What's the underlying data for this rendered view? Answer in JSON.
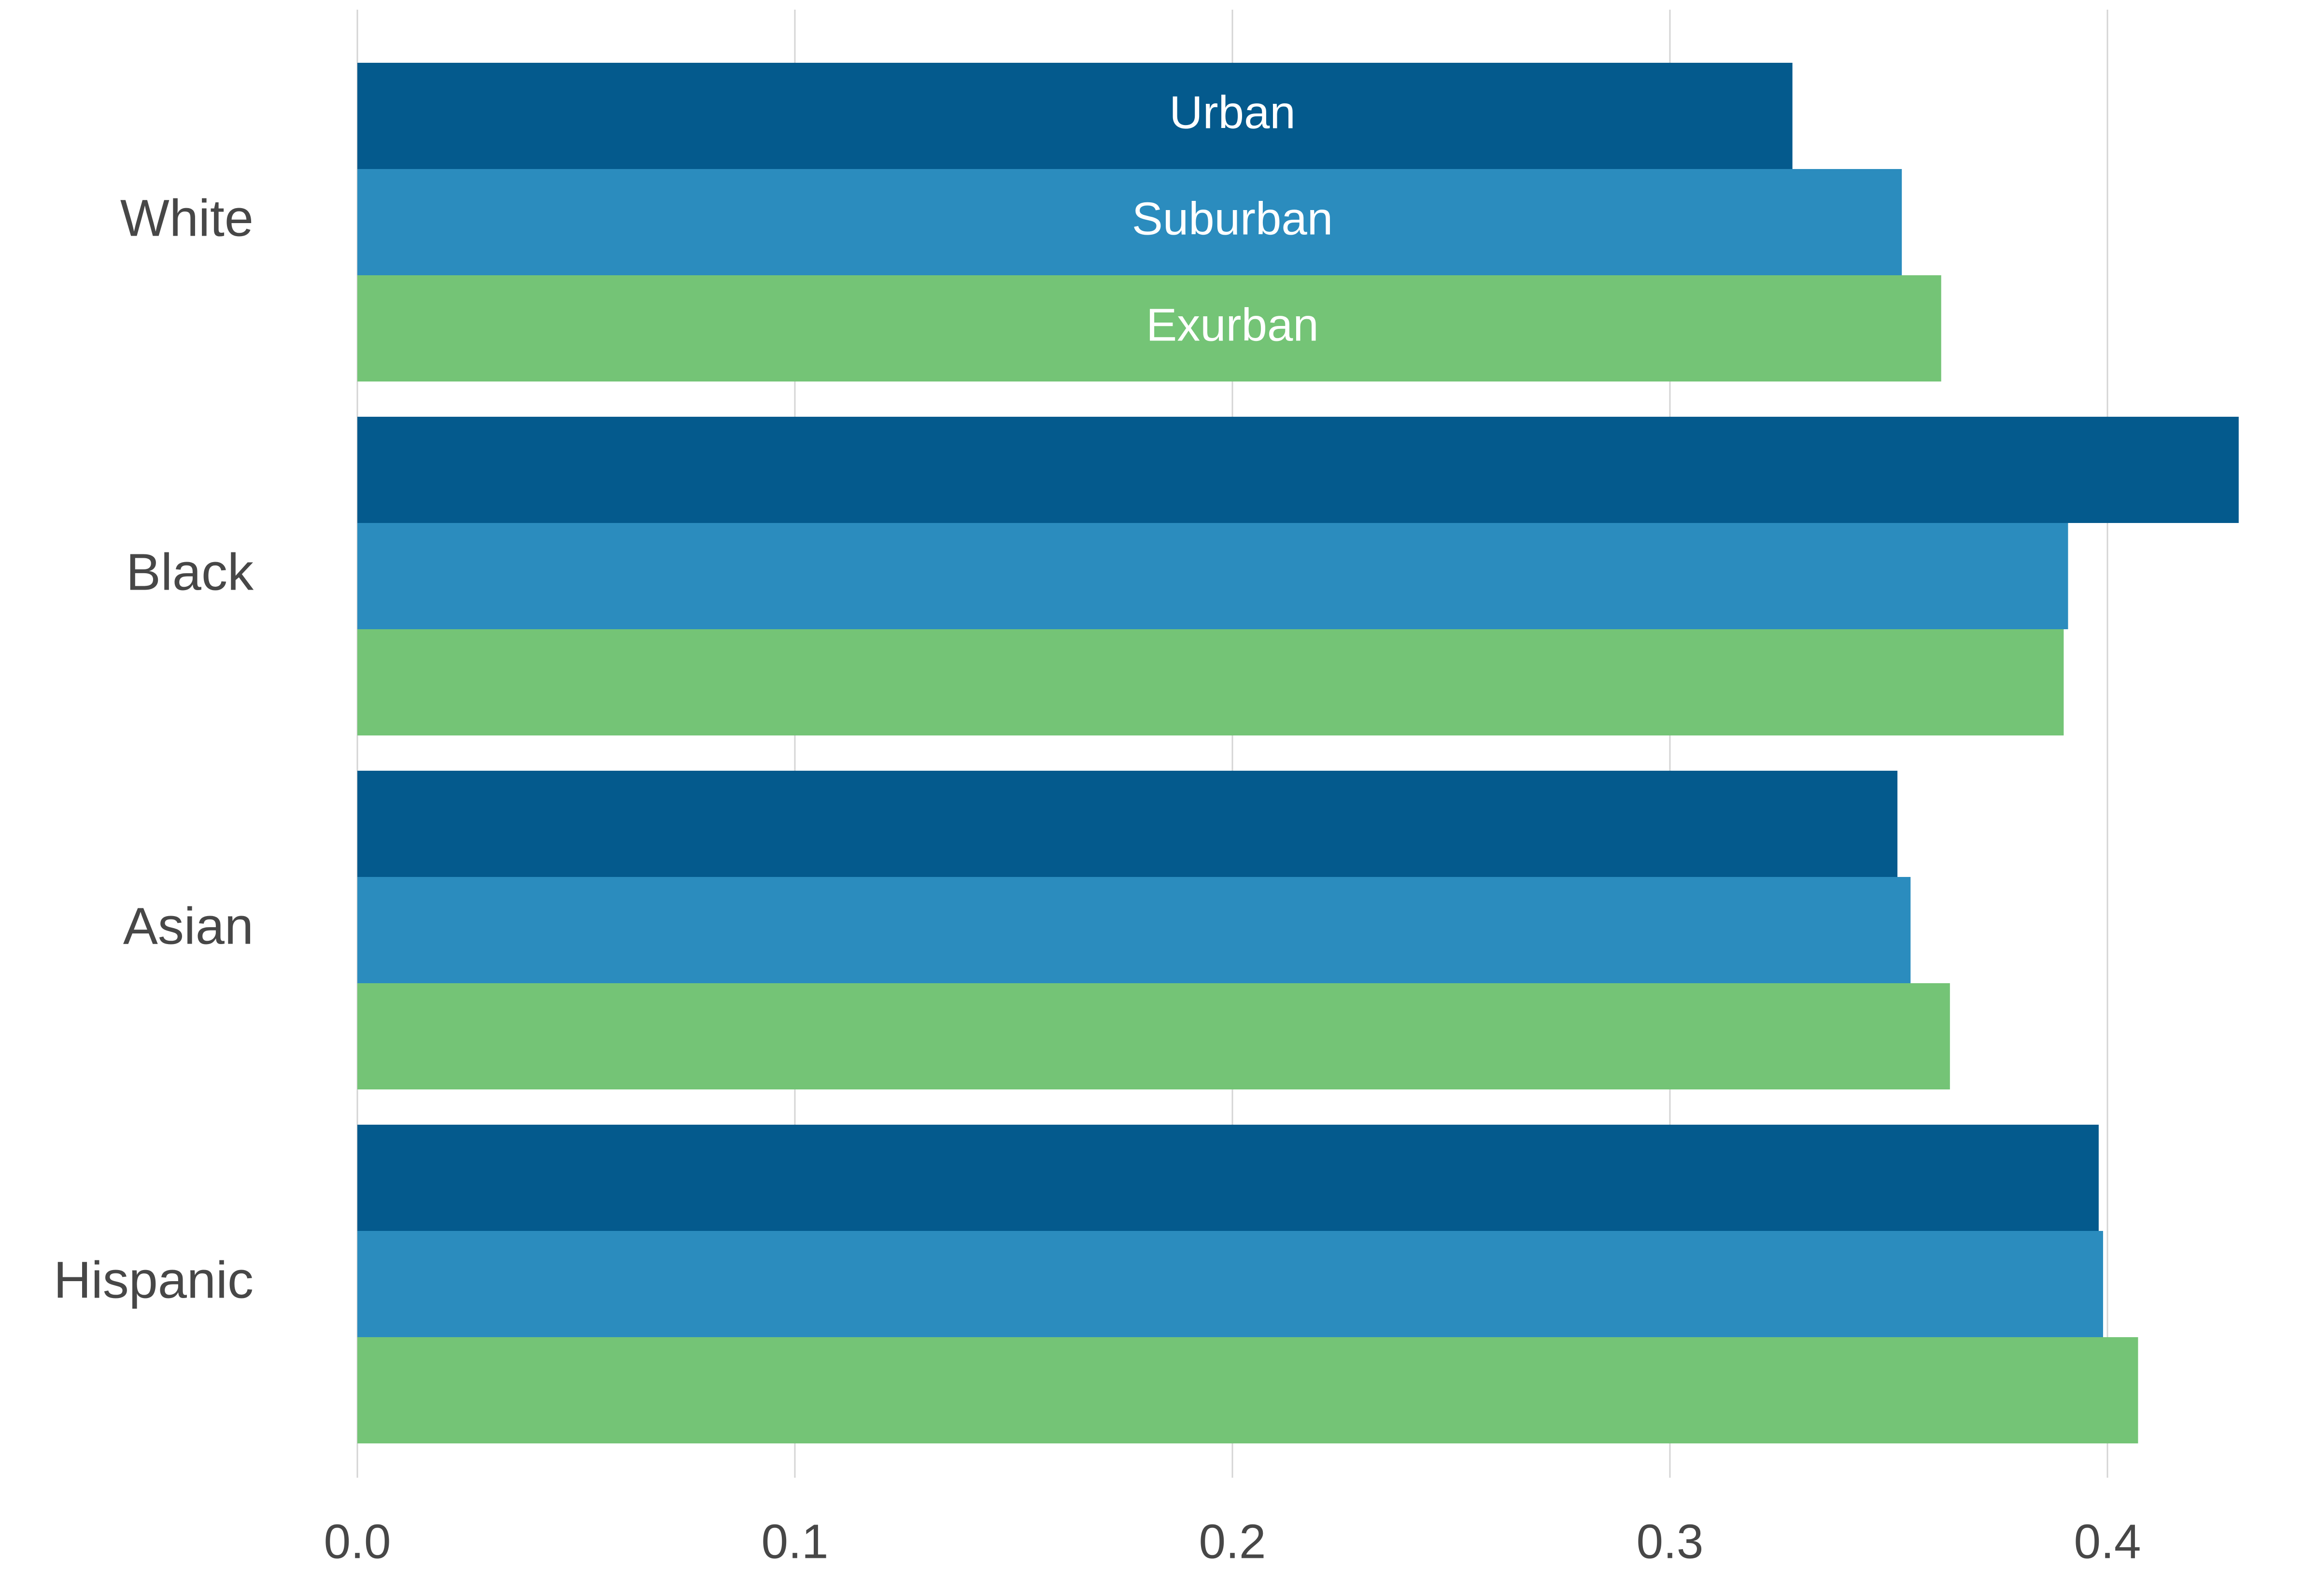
{
  "chart_data": {
    "type": "bar",
    "orientation": "horizontal",
    "categories": [
      "White",
      "Black",
      "Asian",
      "Hispanic"
    ],
    "series": [
      {
        "name": "Urban",
        "color": "#045a8d",
        "values": [
          0.328,
          0.43,
          0.352,
          0.398
        ]
      },
      {
        "name": "Suburban",
        "color": "#2b8cbe",
        "values": [
          0.353,
          0.391,
          0.355,
          0.399
        ]
      },
      {
        "name": "Exurban",
        "color": "#74c476",
        "values": [
          0.362,
          0.39,
          0.364,
          0.407
        ]
      }
    ],
    "series_labels_on_first_category": true,
    "xlim": [
      0.0,
      0.4
    ],
    "xticks": [
      {
        "value": 0.0,
        "label": "0.0"
      },
      {
        "value": 0.1,
        "label": "0.1"
      },
      {
        "value": 0.2,
        "label": "0.2"
      },
      {
        "value": 0.3,
        "label": "0.3"
      },
      {
        "value": 0.4,
        "label": "0.4"
      }
    ],
    "grid": "vertical",
    "legend": "none"
  }
}
